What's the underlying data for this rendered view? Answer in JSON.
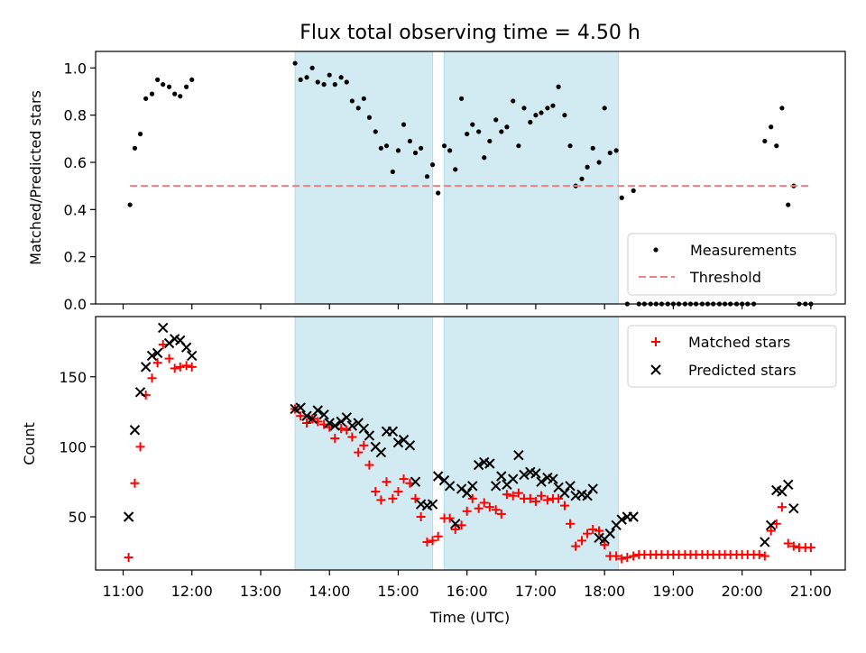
{
  "chart_data": [
    {
      "type": "scatter",
      "title": "Flux total observing time = 4.50 h",
      "xlabel": "",
      "ylabel": "Matched/Predicted stars",
      "xlim": [
        10.6,
        21.5
      ],
      "ylim": [
        0,
        1.07
      ],
      "yticks": [
        0.0,
        0.2,
        0.4,
        0.6,
        0.8,
        1.0
      ],
      "ytick_labels": [
        "0.0",
        "0.2",
        "0.4",
        "0.6",
        "0.8",
        "1.0"
      ],
      "grid": false,
      "legend": "bottom-right",
      "shaded_intervals": [
        [
          13.5,
          15.5
        ],
        [
          15.667,
          18.2
        ]
      ],
      "shade_color": "#add8e6",
      "series": [
        {
          "name": "Measurements",
          "marker": "dot",
          "color": "#000000",
          "x": [
            11.1,
            11.17,
            11.25,
            11.33,
            11.42,
            11.5,
            11.58,
            11.67,
            11.75,
            11.83,
            11.92,
            12.0,
            13.5,
            13.58,
            13.67,
            13.75,
            13.83,
            13.92,
            14.0,
            14.08,
            14.17,
            14.25,
            14.33,
            14.42,
            14.5,
            14.58,
            14.67,
            14.75,
            14.83,
            14.92,
            15.0,
            15.08,
            15.17,
            15.25,
            15.33,
            15.42,
            15.5,
            15.58,
            15.67,
            15.75,
            15.83,
            15.92,
            16.0,
            16.08,
            16.17,
            16.25,
            16.33,
            16.42,
            16.5,
            16.58,
            16.67,
            16.75,
            16.83,
            16.92,
            17.0,
            17.08,
            17.17,
            17.25,
            17.33,
            17.42,
            17.5,
            17.58,
            17.67,
            17.75,
            17.83,
            17.92,
            18.0,
            18.08,
            18.17,
            18.25,
            18.33,
            18.42,
            18.5,
            18.58,
            18.67,
            18.75,
            18.83,
            18.92,
            19.0,
            19.08,
            19.17,
            19.25,
            19.33,
            19.42,
            19.5,
            19.58,
            19.67,
            19.75,
            19.83,
            19.92,
            20.0,
            20.08,
            20.17,
            20.33,
            20.42,
            20.5,
            20.58,
            20.67,
            20.75,
            20.83,
            20.92,
            21.0
          ],
          "y": [
            0.42,
            0.66,
            0.72,
            0.87,
            0.89,
            0.95,
            0.93,
            0.92,
            0.89,
            0.88,
            0.92,
            0.95,
            1.02,
            0.95,
            0.96,
            1.0,
            0.94,
            0.93,
            0.97,
            0.93,
            0.96,
            0.94,
            0.86,
            0.83,
            0.87,
            0.79,
            0.73,
            0.66,
            0.67,
            0.56,
            0.65,
            0.76,
            0.69,
            0.64,
            0.66,
            0.54,
            0.59,
            0.47,
            0.67,
            0.65,
            0.57,
            0.87,
            0.72,
            0.76,
            0.73,
            0.62,
            0.69,
            0.78,
            0.73,
            0.75,
            0.86,
            0.67,
            0.83,
            0.77,
            0.8,
            0.81,
            0.83,
            0.84,
            0.92,
            0.8,
            0.67,
            0.5,
            0.53,
            0.58,
            0.66,
            0.6,
            0.83,
            0.64,
            0.65,
            0.45,
            0.0,
            0.48,
            0.0,
            0.0,
            0.0,
            0.0,
            0.0,
            0.0,
            0.0,
            0.0,
            0.0,
            0.0,
            0.0,
            0.0,
            0.0,
            0.0,
            0.0,
            0.0,
            0.0,
            0.0,
            0.0,
            0.0,
            0.0,
            0.69,
            0.75,
            0.67,
            0.83,
            0.42,
            0.5,
            0.0,
            0.0,
            0.0
          ]
        },
        {
          "name": "Threshold",
          "marker": "dashed-line",
          "color": "#f08080",
          "x": [
            11.1,
            21.0
          ],
          "y": [
            0.5,
            0.5
          ]
        }
      ]
    },
    {
      "type": "scatter",
      "title": "",
      "xlabel": "Time (UTC)",
      "ylabel": "Count",
      "xlim": [
        10.6,
        21.5
      ],
      "ylim": [
        12,
        193
      ],
      "xticks": [
        11,
        12,
        13,
        14,
        15,
        16,
        17,
        18,
        19,
        20,
        21
      ],
      "xtick_labels": [
        "11:00",
        "12:00",
        "13:00",
        "14:00",
        "15:00",
        "16:00",
        "17:00",
        "18:00",
        "19:00",
        "20:00",
        "21:00"
      ],
      "yticks": [
        50,
        100,
        150
      ],
      "ytick_labels": [
        "50",
        "100",
        "150"
      ],
      "grid": false,
      "legend": "top-right",
      "shaded_intervals": [
        [
          13.5,
          15.5
        ],
        [
          15.667,
          18.2
        ]
      ],
      "shade_color": "#add8e6",
      "series": [
        {
          "name": "Matched stars",
          "marker": "plus",
          "color": "#ff0000",
          "x": [
            11.08,
            11.17,
            11.25,
            11.33,
            11.42,
            11.5,
            11.58,
            11.67,
            11.75,
            11.83,
            11.92,
            12.0,
            13.5,
            13.58,
            13.67,
            13.75,
            13.83,
            13.92,
            14.0,
            14.08,
            14.17,
            14.25,
            14.33,
            14.42,
            14.5,
            14.58,
            14.67,
            14.75,
            14.83,
            14.92,
            15.0,
            15.08,
            15.17,
            15.25,
            15.33,
            15.42,
            15.5,
            15.58,
            15.67,
            15.75,
            15.83,
            15.92,
            16.0,
            16.08,
            16.17,
            16.25,
            16.33,
            16.42,
            16.5,
            16.58,
            16.67,
            16.75,
            16.83,
            16.92,
            17.0,
            17.08,
            17.17,
            17.25,
            17.33,
            17.42,
            17.5,
            17.58,
            17.67,
            17.75,
            17.83,
            17.92,
            18.0,
            18.08,
            18.17,
            18.25,
            18.33,
            18.42,
            18.5,
            18.58,
            18.67,
            18.75,
            18.83,
            18.92,
            19.0,
            19.08,
            19.17,
            19.25,
            19.33,
            19.42,
            19.5,
            19.58,
            19.67,
            19.75,
            19.83,
            19.92,
            20.0,
            20.08,
            20.17,
            20.25,
            20.33,
            20.42,
            20.5,
            20.58,
            20.67,
            20.75,
            20.83,
            20.92,
            21.0
          ],
          "y": [
            21,
            74,
            100,
            137,
            149,
            160,
            173,
            163,
            156,
            157,
            158,
            157,
            127,
            122,
            117,
            120,
            118,
            116,
            114,
            106,
            113,
            112,
            107,
            96,
            101,
            87,
            68,
            62,
            75,
            63,
            68,
            77,
            74,
            63,
            50,
            32,
            33,
            36,
            49,
            49,
            41,
            44,
            54,
            63,
            56,
            60,
            57,
            55,
            52,
            66,
            65,
            67,
            63,
            63,
            61,
            65,
            62,
            63,
            63,
            58,
            45,
            29,
            33,
            38,
            41,
            40,
            30,
            22,
            22,
            20,
            21,
            22,
            23,
            23,
            23,
            23,
            23,
            23,
            23,
            23,
            23,
            23,
            23,
            23,
            23,
            23,
            23,
            23,
            23,
            23,
            23,
            23,
            23,
            23,
            22,
            40,
            45,
            57,
            31,
            29,
            28,
            28,
            28
          ]
        },
        {
          "name": "Predicted stars",
          "marker": "x",
          "color": "#000000",
          "x": [
            11.08,
            11.17,
            11.25,
            11.33,
            11.42,
            11.5,
            11.58,
            11.67,
            11.75,
            11.83,
            11.92,
            12.0,
            13.5,
            13.58,
            13.67,
            13.75,
            13.83,
            13.92,
            14.0,
            14.08,
            14.17,
            14.25,
            14.33,
            14.42,
            14.5,
            14.58,
            14.67,
            14.75,
            14.83,
            14.92,
            15.0,
            15.08,
            15.17,
            15.25,
            15.33,
            15.42,
            15.5,
            15.58,
            15.67,
            15.75,
            15.83,
            15.92,
            16.0,
            16.08,
            16.17,
            16.25,
            16.33,
            16.42,
            16.5,
            16.58,
            16.67,
            16.75,
            16.83,
            16.92,
            17.0,
            17.08,
            17.17,
            17.25,
            17.33,
            17.42,
            17.5,
            17.58,
            17.67,
            17.75,
            17.83,
            17.92,
            18.0,
            18.08,
            18.17,
            18.25,
            18.33,
            18.42,
            20.33,
            20.42,
            20.5,
            20.58,
            20.67,
            20.75
          ],
          "y": [
            50,
            112,
            139,
            157,
            165,
            167,
            185,
            174,
            177,
            176,
            171,
            165,
            127,
            128,
            122,
            120,
            126,
            123,
            117,
            115,
            118,
            121,
            115,
            117,
            113,
            108,
            100,
            96,
            111,
            111,
            103,
            105,
            101,
            75,
            59,
            58,
            59,
            79,
            76,
            72,
            45,
            70,
            67,
            72,
            87,
            89,
            88,
            72,
            79,
            73,
            77,
            94,
            80,
            82,
            81,
            75,
            78,
            77,
            71,
            67,
            72,
            65,
            66,
            65,
            70,
            35,
            34,
            38,
            44,
            48,
            50,
            50,
            32,
            44,
            69,
            68,
            73,
            56
          ]
        }
      ]
    }
  ]
}
